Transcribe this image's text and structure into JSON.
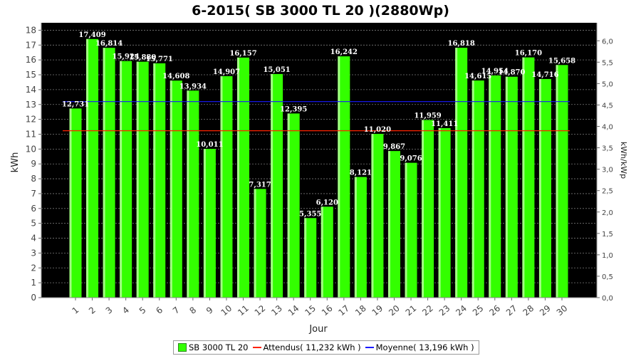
{
  "chart_data": {
    "type": "bar",
    "title": "6-2015( SB 3000 TL 20 )(2880Wp)",
    "xlabel": "Jour",
    "ylabel": "kWh",
    "ylabel_right": "kWh/kWp",
    "ylim": [
      0,
      18.5
    ],
    "ylim_right": [
      0,
      6.42
    ],
    "yticks": [
      "0",
      "1",
      "2",
      "3",
      "4",
      "5",
      "6",
      "7",
      "8",
      "9",
      "10",
      "11",
      "12",
      "13",
      "14",
      "15",
      "16",
      "17",
      "18"
    ],
    "yticks_right": [
      "0,0",
      "0,5",
      "1,0",
      "1,5",
      "2,0",
      "2,5",
      "3,0",
      "3,5",
      "4,0",
      "4,5",
      "5,0",
      "5,5",
      "6,0"
    ],
    "categories": [
      "1",
      "2",
      "3",
      "4",
      "5",
      "6",
      "7",
      "8",
      "9",
      "10",
      "11",
      "12",
      "13",
      "14",
      "15",
      "16",
      "17",
      "18",
      "19",
      "20",
      "21",
      "22",
      "23",
      "24",
      "25",
      "26",
      "27",
      "28",
      "29",
      "30"
    ],
    "series": [
      {
        "name": "SB 3000 TL 20",
        "color": "#33ff00",
        "values": [
          12.731,
          17.409,
          16.814,
          15.924,
          15.88,
          15.771,
          14.608,
          13.934,
          10.011,
          14.907,
          16.157,
          7.317,
          15.051,
          12.395,
          5.355,
          6.12,
          16.242,
          8.121,
          11.02,
          9.867,
          9.076,
          11.959,
          11.411,
          16.818,
          14.615,
          14.954,
          14.87,
          16.17,
          14.716,
          15.658
        ],
        "labels": [
          "12,731",
          "17,409",
          "16,814",
          "15,924",
          "15,880",
          "15,771",
          "14,608",
          "13,934",
          "10,011",
          "14,907",
          "16,157",
          "7,317",
          "15,051",
          "12,395",
          "5,355",
          "6,120",
          "16,242",
          "8,121",
          "11,020",
          "9,867",
          "9,076",
          "11,959",
          "11,411",
          "16,818",
          "14,615",
          "14,954",
          "14,870",
          "16,170",
          "14,716",
          "15,658"
        ]
      }
    ],
    "reference_lines": [
      {
        "name": "Attendus( 11,232 kWh )",
        "value": 11.232,
        "color": "#ff2200"
      },
      {
        "name": "Moyenne( 13,196 kWh )",
        "value": 13.196,
        "color": "#1a1aff"
      }
    ],
    "legend_position": "bottom",
    "plot_background": "#000000",
    "grid": true
  }
}
